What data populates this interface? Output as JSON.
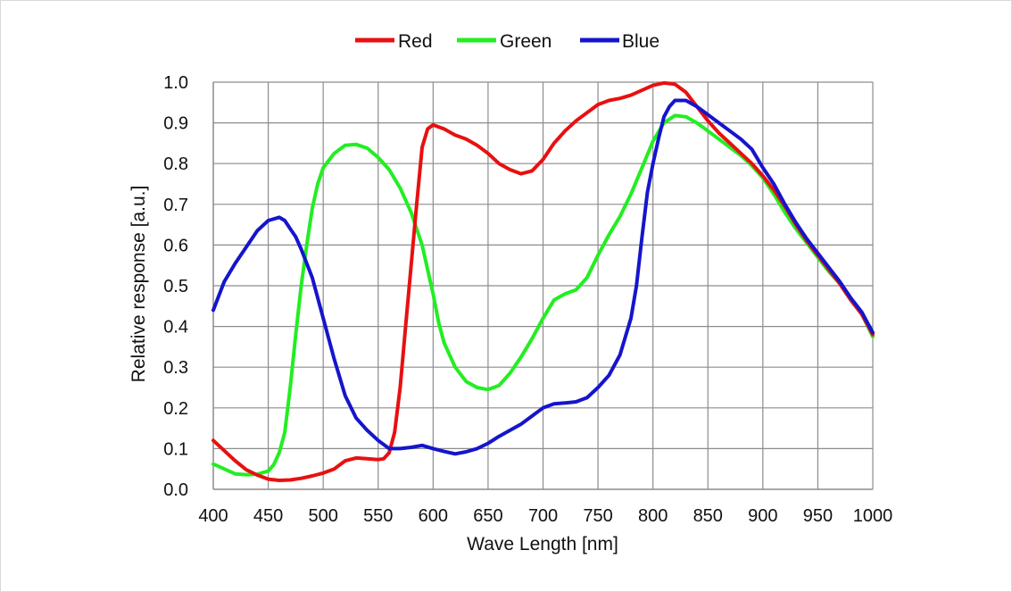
{
  "chart_data": {
    "type": "line",
    "title": "",
    "xlabel": "Wave Length [nm]",
    "ylabel": "Relative response [a.u.]",
    "xlim": [
      400,
      1000
    ],
    "ylim": [
      0,
      1.0
    ],
    "x_ticks": [
      400,
      450,
      500,
      550,
      600,
      650,
      700,
      750,
      800,
      850,
      900,
      950,
      1000
    ],
    "y_ticks": [
      0.0,
      0.1,
      0.2,
      0.3,
      0.4,
      0.5,
      0.6,
      0.7,
      0.8,
      0.9,
      1.0
    ],
    "x_tick_labels": [
      "400",
      "450",
      "500",
      "550",
      "600",
      "650",
      "700",
      "750",
      "800",
      "850",
      "900",
      "950",
      "1000"
    ],
    "y_tick_labels": [
      "0.0",
      "0.1",
      "0.2",
      "0.3",
      "0.4",
      "0.5",
      "0.6",
      "0.7",
      "0.8",
      "0.9",
      "1.0"
    ],
    "grid": true,
    "legend_position": "top-center",
    "series": [
      {
        "name": "Red",
        "color": "#e81010",
        "points": [
          [
            400,
            0.12
          ],
          [
            410,
            0.095
          ],
          [
            420,
            0.07
          ],
          [
            430,
            0.048
          ],
          [
            440,
            0.035
          ],
          [
            450,
            0.025
          ],
          [
            460,
            0.022
          ],
          [
            470,
            0.023
          ],
          [
            480,
            0.027
          ],
          [
            490,
            0.033
          ],
          [
            500,
            0.04
          ],
          [
            510,
            0.05
          ],
          [
            520,
            0.07
          ],
          [
            530,
            0.077
          ],
          [
            540,
            0.075
          ],
          [
            550,
            0.073
          ],
          [
            555,
            0.075
          ],
          [
            560,
            0.09
          ],
          [
            565,
            0.14
          ],
          [
            570,
            0.25
          ],
          [
            575,
            0.4
          ],
          [
            580,
            0.55
          ],
          [
            585,
            0.7
          ],
          [
            590,
            0.84
          ],
          [
            595,
            0.885
          ],
          [
            600,
            0.895
          ],
          [
            610,
            0.885
          ],
          [
            620,
            0.87
          ],
          [
            630,
            0.86
          ],
          [
            640,
            0.845
          ],
          [
            650,
            0.825
          ],
          [
            660,
            0.8
          ],
          [
            670,
            0.785
          ],
          [
            680,
            0.775
          ],
          [
            690,
            0.782
          ],
          [
            700,
            0.81
          ],
          [
            710,
            0.85
          ],
          [
            720,
            0.88
          ],
          [
            730,
            0.905
          ],
          [
            740,
            0.925
          ],
          [
            750,
            0.945
          ],
          [
            760,
            0.955
          ],
          [
            770,
            0.96
          ],
          [
            780,
            0.968
          ],
          [
            790,
            0.98
          ],
          [
            800,
            0.992
          ],
          [
            810,
            0.998
          ],
          [
            820,
            0.995
          ],
          [
            830,
            0.975
          ],
          [
            840,
            0.94
          ],
          [
            850,
            0.905
          ],
          [
            860,
            0.875
          ],
          [
            870,
            0.85
          ],
          [
            880,
            0.825
          ],
          [
            890,
            0.8
          ],
          [
            900,
            0.77
          ],
          [
            910,
            0.735
          ],
          [
            920,
            0.695
          ],
          [
            930,
            0.65
          ],
          [
            940,
            0.61
          ],
          [
            950,
            0.575
          ],
          [
            960,
            0.54
          ],
          [
            970,
            0.505
          ],
          [
            980,
            0.465
          ],
          [
            990,
            0.43
          ],
          [
            1000,
            0.38
          ]
        ]
      },
      {
        "name": "Green",
        "color": "#22ee22",
        "points": [
          [
            400,
            0.062
          ],
          [
            410,
            0.05
          ],
          [
            420,
            0.038
          ],
          [
            430,
            0.036
          ],
          [
            440,
            0.037
          ],
          [
            450,
            0.045
          ],
          [
            455,
            0.06
          ],
          [
            460,
            0.09
          ],
          [
            465,
            0.14
          ],
          [
            470,
            0.25
          ],
          [
            475,
            0.38
          ],
          [
            480,
            0.5
          ],
          [
            485,
            0.6
          ],
          [
            490,
            0.69
          ],
          [
            495,
            0.75
          ],
          [
            500,
            0.79
          ],
          [
            510,
            0.825
          ],
          [
            520,
            0.845
          ],
          [
            530,
            0.847
          ],
          [
            540,
            0.838
          ],
          [
            550,
            0.815
          ],
          [
            560,
            0.785
          ],
          [
            570,
            0.74
          ],
          [
            580,
            0.68
          ],
          [
            590,
            0.6
          ],
          [
            600,
            0.48
          ],
          [
            605,
            0.41
          ],
          [
            610,
            0.36
          ],
          [
            620,
            0.3
          ],
          [
            630,
            0.265
          ],
          [
            640,
            0.25
          ],
          [
            650,
            0.245
          ],
          [
            660,
            0.255
          ],
          [
            670,
            0.285
          ],
          [
            680,
            0.325
          ],
          [
            690,
            0.37
          ],
          [
            700,
            0.42
          ],
          [
            710,
            0.465
          ],
          [
            720,
            0.48
          ],
          [
            730,
            0.49
          ],
          [
            740,
            0.52
          ],
          [
            750,
            0.575
          ],
          [
            760,
            0.625
          ],
          [
            770,
            0.67
          ],
          [
            780,
            0.725
          ],
          [
            790,
            0.79
          ],
          [
            800,
            0.855
          ],
          [
            810,
            0.9
          ],
          [
            820,
            0.918
          ],
          [
            830,
            0.915
          ],
          [
            840,
            0.9
          ],
          [
            850,
            0.88
          ],
          [
            860,
            0.86
          ],
          [
            870,
            0.84
          ],
          [
            880,
            0.82
          ],
          [
            890,
            0.795
          ],
          [
            900,
            0.765
          ],
          [
            910,
            0.725
          ],
          [
            920,
            0.68
          ],
          [
            930,
            0.64
          ],
          [
            940,
            0.605
          ],
          [
            950,
            0.57
          ],
          [
            960,
            0.535
          ],
          [
            970,
            0.505
          ],
          [
            980,
            0.465
          ],
          [
            990,
            0.43
          ],
          [
            1000,
            0.375
          ]
        ]
      },
      {
        "name": "Blue",
        "color": "#1515cc",
        "points": [
          [
            400,
            0.44
          ],
          [
            410,
            0.51
          ],
          [
            420,
            0.555
          ],
          [
            430,
            0.595
          ],
          [
            440,
            0.635
          ],
          [
            450,
            0.66
          ],
          [
            460,
            0.668
          ],
          [
            465,
            0.66
          ],
          [
            470,
            0.64
          ],
          [
            475,
            0.62
          ],
          [
            480,
            0.59
          ],
          [
            490,
            0.52
          ],
          [
            500,
            0.42
          ],
          [
            510,
            0.32
          ],
          [
            520,
            0.23
          ],
          [
            530,
            0.175
          ],
          [
            540,
            0.145
          ],
          [
            550,
            0.12
          ],
          [
            560,
            0.1
          ],
          [
            570,
            0.1
          ],
          [
            580,
            0.103
          ],
          [
            590,
            0.108
          ],
          [
            600,
            0.1
          ],
          [
            610,
            0.093
          ],
          [
            620,
            0.087
          ],
          [
            630,
            0.092
          ],
          [
            640,
            0.1
          ],
          [
            650,
            0.113
          ],
          [
            660,
            0.13
          ],
          [
            670,
            0.145
          ],
          [
            680,
            0.16
          ],
          [
            690,
            0.18
          ],
          [
            700,
            0.2
          ],
          [
            710,
            0.21
          ],
          [
            720,
            0.212
          ],
          [
            730,
            0.215
          ],
          [
            740,
            0.225
          ],
          [
            750,
            0.25
          ],
          [
            760,
            0.28
          ],
          [
            770,
            0.33
          ],
          [
            780,
            0.42
          ],
          [
            785,
            0.5
          ],
          [
            790,
            0.62
          ],
          [
            795,
            0.73
          ],
          [
            800,
            0.8
          ],
          [
            805,
            0.86
          ],
          [
            810,
            0.915
          ],
          [
            815,
            0.94
          ],
          [
            820,
            0.955
          ],
          [
            830,
            0.955
          ],
          [
            840,
            0.94
          ],
          [
            850,
            0.92
          ],
          [
            860,
            0.9
          ],
          [
            870,
            0.88
          ],
          [
            880,
            0.86
          ],
          [
            890,
            0.835
          ],
          [
            900,
            0.79
          ],
          [
            910,
            0.75
          ],
          [
            920,
            0.7
          ],
          [
            930,
            0.655
          ],
          [
            940,
            0.615
          ],
          [
            950,
            0.58
          ],
          [
            960,
            0.545
          ],
          [
            970,
            0.51
          ],
          [
            980,
            0.47
          ],
          [
            990,
            0.435
          ],
          [
            1000,
            0.385
          ]
        ]
      }
    ]
  }
}
